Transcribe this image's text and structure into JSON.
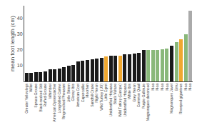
{
  "chart_data": {
    "type": "bar",
    "ylabel": "mean foot length (cm)",
    "categories": [
      "Greater Yellowlegs",
      "Willet",
      "Spruce Grouse",
      "Black-necked Stilt",
      "Ruffed Grouse",
      "Whimbrel",
      "American Oystercatcher",
      "Long-billed Curlew",
      "Ring-necked Pheasant",
      "Little Bittern",
      "Glossy Ibis",
      "American Coot",
      "Capercaillie",
      "Moorhen",
      "Sandhill Crane",
      "Night Heron",
      "Wild Turkey (US)",
      "Little Egret",
      "Unidentified Hispana",
      "Black Vulture",
      "Wild Turkey (Europe)",
      "Unidentified Hispana",
      "White Ibis",
      "Grey Heron",
      "Common Quail",
      "Purple Gallinule",
      "Magnonques denonced",
      "Moa",
      "Moa",
      "Moa",
      "Moa",
      "Magnonques Javel",
      "Emu",
      "Riverped giganteus",
      "Moa",
      "Moa"
    ],
    "values": [
      5.5,
      5.5,
      5.7,
      5.7,
      6.2,
      7.5,
      7.8,
      8.2,
      9.0,
      9.8,
      10.5,
      12.5,
      13.0,
      13.5,
      14.0,
      14.5,
      15.0,
      16.0,
      16.2,
      16.5,
      16.5,
      17.0,
      17.2,
      17.5,
      18.0,
      20.0,
      20.0,
      20.0,
      20.0,
      20.5,
      21.0,
      22.5,
      25.0,
      26.5,
      30.0,
      45.0
    ],
    "colors": [
      "#1a1a1a",
      "#1a1a1a",
      "#1a1a1a",
      "#1a1a1a",
      "#1a1a1a",
      "#1a1a1a",
      "#1a1a1a",
      "#1a1a1a",
      "#1a1a1a",
      "#1a1a1a",
      "#1a1a1a",
      "#1a1a1a",
      "#1a1a1a",
      "#1a1a1a",
      "#1a1a1a",
      "#1a1a1a",
      "#1a1a1a",
      "#f0a830",
      "#1a1a1a",
      "#1a1a1a",
      "#f0a830",
      "#1a1a1a",
      "#1a1a1a",
      "#1a1a1a",
      "#1a1a1a",
      "#1a1a1a",
      "#8ab87a",
      "#8ab87a",
      "#8ab87a",
      "#8ab87a",
      "#8ab87a",
      "#1a1a1a",
      "#8ab87a",
      "#f0a830",
      "#8ab87a",
      "#aaaaaa"
    ],
    "ylim": [
      0,
      48
    ],
    "yticks": [
      10,
      20,
      30,
      40
    ],
    "grid": false
  }
}
